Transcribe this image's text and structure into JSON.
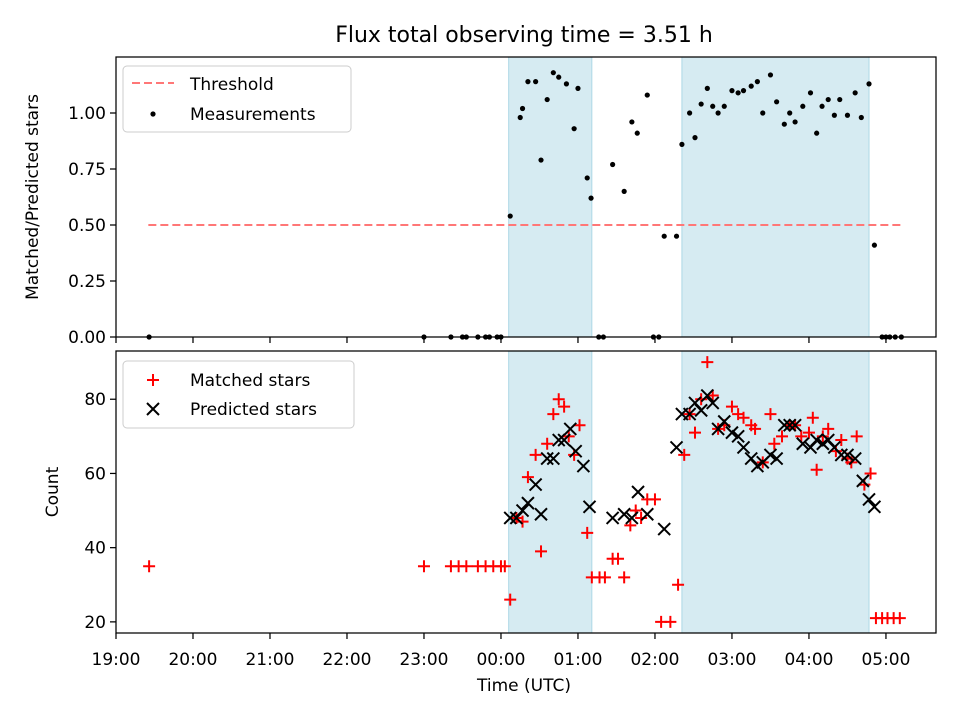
{
  "chart_data": {
    "title": "Flux total observing time = 3.51 h",
    "xlabel": "Time (UTC)",
    "x_unit": "hours relative to 00:00 UTC",
    "xlim": [
      -5.0,
      5.65
    ],
    "xticks": [
      {
        "v": -5,
        "label": "19:00"
      },
      {
        "v": -4,
        "label": "20:00"
      },
      {
        "v": -3,
        "label": "21:00"
      },
      {
        "v": -2,
        "label": "22:00"
      },
      {
        "v": -1,
        "label": "23:00"
      },
      {
        "v": 0,
        "label": "00:00"
      },
      {
        "v": 1,
        "label": "01:00"
      },
      {
        "v": 2,
        "label": "02:00"
      },
      {
        "v": 3,
        "label": "03:00"
      },
      {
        "v": 4,
        "label": "04:00"
      },
      {
        "v": 5,
        "label": "05:00"
      }
    ],
    "shaded_intervals": [
      [
        0.1,
        1.18
      ],
      [
        2.35,
        4.78
      ]
    ],
    "shade_color": "#add8e6",
    "top": {
      "type": "scatter",
      "ylabel": "Matched/Predicted stars",
      "ylim": [
        0,
        1.25
      ],
      "yticks": [
        {
          "v": 0,
          "label": "0.00"
        },
        {
          "v": 0.25,
          "label": "0.25"
        },
        {
          "v": 0.5,
          "label": "0.50"
        },
        {
          "v": 0.75,
          "label": "0.75"
        },
        {
          "v": 1.0,
          "label": "1.00"
        }
      ],
      "threshold": {
        "name": "Threshold",
        "y": 0.5,
        "x_range": [
          -4.58,
          5.2
        ],
        "color": "#ff7777"
      },
      "legend": [
        "Threshold",
        "Measurements"
      ],
      "series": [
        {
          "name": "Measurements",
          "color": "#000000",
          "points": [
            [
              -4.57,
              0
            ],
            [
              -1.0,
              0
            ],
            [
              -0.65,
              0
            ],
            [
              -0.5,
              0
            ],
            [
              -0.45,
              0
            ],
            [
              -0.3,
              0
            ],
            [
              -0.2,
              0
            ],
            [
              -0.15,
              0
            ],
            [
              -0.05,
              0
            ],
            [
              0,
              0
            ],
            [
              0.12,
              0.54
            ],
            [
              0.25,
              0.98
            ],
            [
              0.28,
              1.02
            ],
            [
              0.35,
              1.14
            ],
            [
              0.45,
              1.14
            ],
            [
              0.52,
              0.79
            ],
            [
              0.6,
              1.06
            ],
            [
              0.68,
              1.18
            ],
            [
              0.75,
              1.16
            ],
            [
              0.85,
              1.13
            ],
            [
              0.95,
              0.93
            ],
            [
              1.0,
              1.11
            ],
            [
              1.12,
              0.71
            ],
            [
              1.17,
              0.62
            ],
            [
              1.27,
              0
            ],
            [
              1.33,
              0
            ],
            [
              1.45,
              0.77
            ],
            [
              1.6,
              0.65
            ],
            [
              1.7,
              0.96
            ],
            [
              1.77,
              0.91
            ],
            [
              1.9,
              1.08
            ],
            [
              1.98,
              0
            ],
            [
              2.05,
              0
            ],
            [
              2.12,
              0.45
            ],
            [
              2.28,
              0.45
            ],
            [
              2.35,
              0.86
            ],
            [
              2.45,
              1.0
            ],
            [
              2.52,
              0.89
            ],
            [
              2.6,
              1.04
            ],
            [
              2.68,
              1.11
            ],
            [
              2.75,
              1.03
            ],
            [
              2.82,
              1.0
            ],
            [
              2.9,
              1.03
            ],
            [
              3.0,
              1.1
            ],
            [
              3.08,
              1.09
            ],
            [
              3.15,
              1.1
            ],
            [
              3.25,
              1.12
            ],
            [
              3.33,
              1.14
            ],
            [
              3.4,
              1.0
            ],
            [
              3.5,
              1.17
            ],
            [
              3.58,
              1.05
            ],
            [
              3.68,
              0.95
            ],
            [
              3.75,
              1.0
            ],
            [
              3.82,
              0.96
            ],
            [
              3.92,
              1.03
            ],
            [
              4.02,
              1.09
            ],
            [
              4.1,
              0.91
            ],
            [
              4.17,
              1.03
            ],
            [
              4.25,
              1.06
            ],
            [
              4.33,
              0.99
            ],
            [
              4.4,
              1.06
            ],
            [
              4.5,
              0.99
            ],
            [
              4.6,
              1.09
            ],
            [
              4.68,
              0.98
            ],
            [
              4.78,
              1.13
            ],
            [
              4.85,
              0.41
            ],
            [
              4.95,
              0
            ],
            [
              5.0,
              0
            ],
            [
              5.05,
              0
            ],
            [
              5.12,
              0
            ],
            [
              5.2,
              0
            ]
          ]
        }
      ]
    },
    "bottom": {
      "type": "scatter",
      "ylabel": "Count",
      "ylim": [
        17,
        93
      ],
      "yticks": [
        {
          "v": 20,
          "label": "20"
        },
        {
          "v": 40,
          "label": "40"
        },
        {
          "v": 60,
          "label": "60"
        },
        {
          "v": 80,
          "label": "80"
        }
      ],
      "legend": [
        "Matched stars",
        "Predicted stars"
      ],
      "series": [
        {
          "name": "Matched stars",
          "color": "#ff0000",
          "marker": "plus",
          "points": [
            [
              -4.57,
              35
            ],
            [
              -1.0,
              35
            ],
            [
              -0.65,
              35
            ],
            [
              -0.55,
              35
            ],
            [
              -0.45,
              35
            ],
            [
              -0.3,
              35
            ],
            [
              -0.2,
              35
            ],
            [
              -0.1,
              35
            ],
            [
              0.0,
              35
            ],
            [
              0.05,
              35
            ],
            [
              0.12,
              26
            ],
            [
              0.2,
              48
            ],
            [
              0.28,
              47
            ],
            [
              0.35,
              59
            ],
            [
              0.45,
              65
            ],
            [
              0.52,
              39
            ],
            [
              0.6,
              68
            ],
            [
              0.68,
              76
            ],
            [
              0.75,
              80
            ],
            [
              0.82,
              78
            ],
            [
              0.88,
              70
            ],
            [
              0.95,
              65
            ],
            [
              1.02,
              73
            ],
            [
              1.12,
              44
            ],
            [
              1.18,
              32
            ],
            [
              1.28,
              32
            ],
            [
              1.35,
              32
            ],
            [
              1.45,
              37
            ],
            [
              1.52,
              37
            ],
            [
              1.6,
              32
            ],
            [
              1.68,
              46
            ],
            [
              1.75,
              50
            ],
            [
              1.82,
              48
            ],
            [
              1.9,
              53
            ],
            [
              2.0,
              53
            ],
            [
              2.08,
              20
            ],
            [
              2.2,
              20
            ],
            [
              2.3,
              30
            ],
            [
              2.38,
              65
            ],
            [
              2.45,
              76
            ],
            [
              2.52,
              71
            ],
            [
              2.6,
              80
            ],
            [
              2.68,
              90
            ],
            [
              2.75,
              81
            ],
            [
              2.82,
              72
            ],
            [
              2.9,
              73
            ],
            [
              3.0,
              78
            ],
            [
              3.08,
              76
            ],
            [
              3.15,
              75
            ],
            [
              3.25,
              73
            ],
            [
              3.3,
              72
            ],
            [
              3.4,
              63
            ],
            [
              3.5,
              76
            ],
            [
              3.55,
              68
            ],
            [
              3.65,
              70
            ],
            [
              3.75,
              73
            ],
            [
              3.82,
              73
            ],
            [
              3.9,
              70
            ],
            [
              4.0,
              71
            ],
            [
              4.05,
              75
            ],
            [
              4.1,
              61
            ],
            [
              4.18,
              70
            ],
            [
              4.25,
              72
            ],
            [
              4.35,
              66
            ],
            [
              4.42,
              69
            ],
            [
              4.5,
              64
            ],
            [
              4.55,
              63
            ],
            [
              4.62,
              70
            ],
            [
              4.72,
              57
            ],
            [
              4.8,
              60
            ],
            [
              4.87,
              21
            ],
            [
              4.95,
              21
            ],
            [
              5.02,
              21
            ],
            [
              5.1,
              21
            ],
            [
              5.18,
              21
            ]
          ]
        },
        {
          "name": "Predicted stars",
          "color": "#000000",
          "marker": "x",
          "points": [
            [
              0.12,
              48
            ],
            [
              0.2,
              48
            ],
            [
              0.28,
              50
            ],
            [
              0.35,
              52
            ],
            [
              0.45,
              57
            ],
            [
              0.52,
              49
            ],
            [
              0.6,
              64
            ],
            [
              0.68,
              64
            ],
            [
              0.75,
              69
            ],
            [
              0.82,
              69
            ],
            [
              0.9,
              72
            ],
            [
              0.97,
              66
            ],
            [
              1.07,
              62
            ],
            [
              1.15,
              51
            ],
            [
              1.45,
              48
            ],
            [
              1.6,
              49
            ],
            [
              1.7,
              48
            ],
            [
              1.78,
              55
            ],
            [
              1.9,
              49
            ],
            [
              2.12,
              45
            ],
            [
              2.28,
              67
            ],
            [
              2.35,
              76
            ],
            [
              2.45,
              76
            ],
            [
              2.52,
              79
            ],
            [
              2.6,
              77
            ],
            [
              2.68,
              81
            ],
            [
              2.75,
              79
            ],
            [
              2.82,
              72
            ],
            [
              2.9,
              74
            ],
            [
              3.0,
              71
            ],
            [
              3.08,
              70
            ],
            [
              3.15,
              67
            ],
            [
              3.25,
              64
            ],
            [
              3.33,
              62
            ],
            [
              3.4,
              63
            ],
            [
              3.5,
              65
            ],
            [
              3.58,
              64
            ],
            [
              3.68,
              73
            ],
            [
              3.75,
              73
            ],
            [
              3.82,
              73
            ],
            [
              3.92,
              68
            ],
            [
              4.02,
              67
            ],
            [
              4.1,
              69
            ],
            [
              4.18,
              68
            ],
            [
              4.25,
              69
            ],
            [
              4.33,
              67
            ],
            [
              4.42,
              65
            ],
            [
              4.5,
              65
            ],
            [
              4.6,
              64
            ],
            [
              4.7,
              58
            ],
            [
              4.78,
              53
            ],
            [
              4.85,
              51
            ]
          ]
        }
      ]
    }
  }
}
